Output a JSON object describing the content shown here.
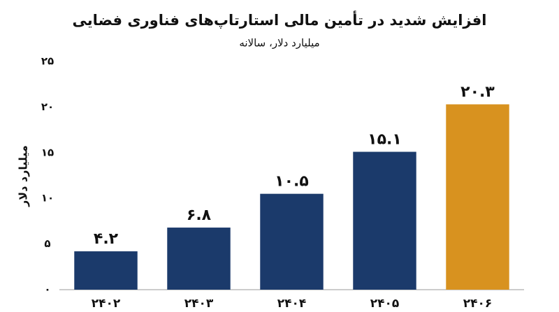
{
  "chart_data": {
    "type": "bar",
    "title": "افزایش شدید در تأمین مالی استارتاپ‌های فناوری فضایی",
    "subtitle": "میلیارد دلار، سالانه",
    "y_label": "میلیارد دلار",
    "categories": [
      "۲۴۰۲",
      "۲۴۰۳",
      "۲۴۰۴",
      "۲۴۰۵",
      "۲۴۰۶"
    ],
    "values": [
      4.2,
      6.8,
      10.5,
      15.1,
      20.3
    ],
    "value_labels": [
      "۴.۲",
      "۶.۸",
      "۱۰.۵",
      "۱۵.۱",
      "۲۰.۳"
    ],
    "colors": [
      "#1b3a6b",
      "#1b3a6b",
      "#1b3a6b",
      "#1b3a6b",
      "#d8921f"
    ],
    "value_label_colors": [
      "#111111",
      "#111111",
      "#111111",
      "#111111",
      "#d8921f"
    ],
    "ylim": [
      0,
      25
    ],
    "yticks": [
      {
        "value": 0,
        "label": "۰"
      },
      {
        "value": 5,
        "label": "۵"
      },
      {
        "value": 10,
        "label": "۱۰"
      },
      {
        "value": 15,
        "label": "۱۵"
      },
      {
        "value": 20,
        "label": "۲۰"
      },
      {
        "value": 25,
        "label": "۲۵"
      }
    ],
    "grid": false
  }
}
